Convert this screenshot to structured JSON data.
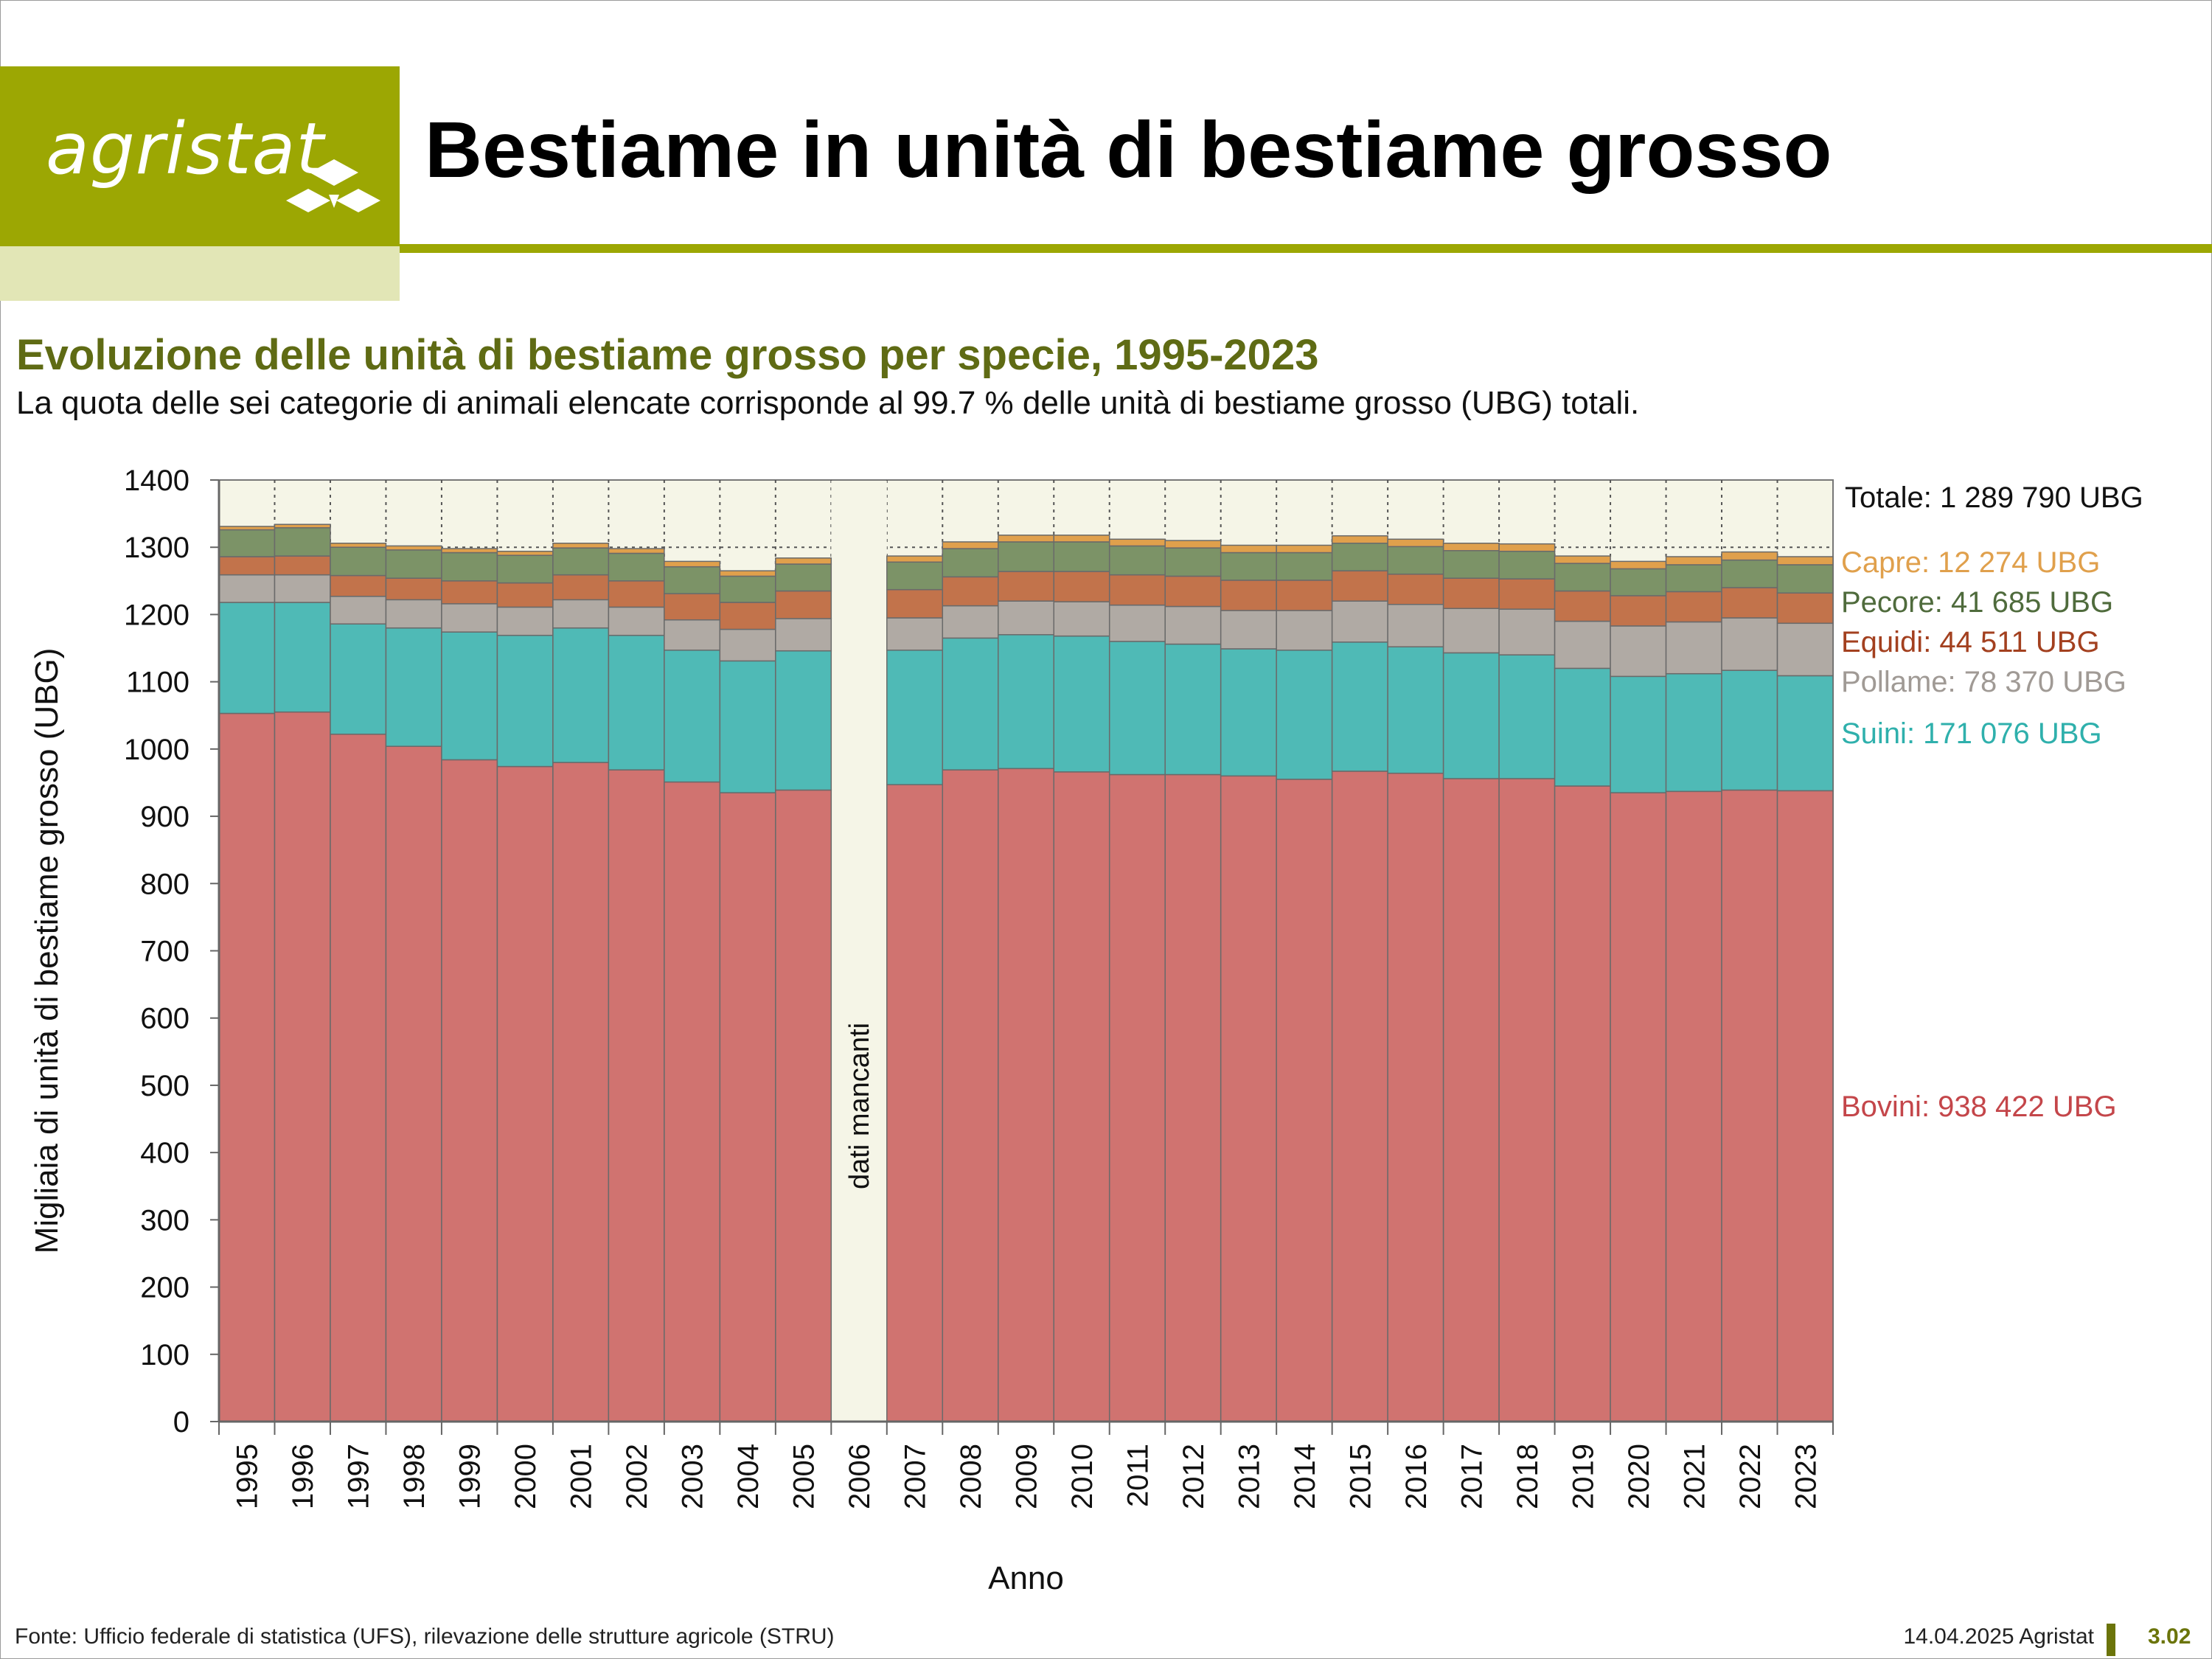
{
  "header": {
    "logo_text": "agristat",
    "title": "Bestiame in unità di bestiame grosso"
  },
  "subtitle": "Evoluzione delle unità di bestiame grosso per specie, 1995-2023",
  "note": "La quota delle sei categorie di animali elencate corrisponde al 99.7 % delle unità di bestiame grosso (UBG) totali.",
  "footer": {
    "source": "Fonte: Ufficio federale di statistica (UFS), rilevazione delle strutture agricole (STRU)",
    "date": "14.04.2025 Agristat",
    "page_number": "3.02"
  },
  "chart_data": {
    "type": "bar",
    "stacked": true,
    "title": "",
    "xlabel": "Anno",
    "ylabel": "Migliaia di unità di bestiame grosso (UBG)",
    "ylim": [
      0,
      1400
    ],
    "yticks": [
      0,
      100,
      200,
      300,
      400,
      500,
      600,
      700,
      800,
      900,
      1000,
      1100,
      1200,
      1300,
      1400
    ],
    "grid": "vertical dotted",
    "categories": [
      "1995",
      "1996",
      "1997",
      "1998",
      "1999",
      "2000",
      "2001",
      "2002",
      "2003",
      "2004",
      "2005",
      "2006",
      "2007",
      "2008",
      "2009",
      "2010",
      "2011",
      "2012",
      "2013",
      "2014",
      "2015",
      "2016",
      "2017",
      "2018",
      "2019",
      "2020",
      "2021",
      "2022",
      "2023"
    ],
    "gap_annotation": "dati mancanti",
    "total_label": "Totale: 1 289 790 UBG",
    "series": [
      {
        "name": "Bovini",
        "label": "Bovini: 938 422 UBG",
        "color": "#d07370",
        "values": [
          1053,
          1055,
          1022,
          1004,
          984,
          974,
          980,
          969,
          951,
          935,
          939,
          null,
          947,
          969,
          971,
          966,
          962,
          962,
          960,
          955,
          967,
          964,
          956,
          956,
          945,
          935,
          937,
          939,
          938
        ]
      },
      {
        "name": "Suini",
        "label": "Suini: 171 076 UBG",
        "color": "#4fbab6",
        "values": [
          165,
          163,
          164,
          176,
          190,
          195,
          200,
          200,
          196,
          196,
          207,
          null,
          200,
          196,
          199,
          202,
          198,
          194,
          189,
          192,
          192,
          188,
          187,
          184,
          175,
          173,
          175,
          178,
          171
        ]
      },
      {
        "name": "Pollame",
        "label": "Pollame: 78 370 UBG",
        "color": "#b0aaa4",
        "values": [
          41,
          41,
          41,
          42,
          42,
          42,
          42,
          42,
          45,
          47,
          48,
          null,
          48,
          48,
          50,
          51,
          54,
          56,
          57,
          59,
          61,
          63,
          66,
          68,
          70,
          75,
          77,
          78,
          78
        ]
      },
      {
        "name": "Equidi",
        "label": "Equidi: 44 511 UBG",
        "color": "#c2734b",
        "values": [
          27,
          28,
          31,
          32,
          34,
          36,
          37,
          39,
          39,
          40,
          41,
          null,
          42,
          43,
          44,
          45,
          45,
          45,
          45,
          45,
          45,
          45,
          45,
          45,
          45,
          45,
          45,
          45,
          45
        ]
      },
      {
        "name": "Pecore",
        "label": "Pecore: 41 685 UBG",
        "color": "#7c9367",
        "values": [
          40,
          42,
          42,
          42,
          42,
          41,
          40,
          41,
          40,
          39,
          40,
          null,
          41,
          42,
          44,
          44,
          43,
          42,
          41,
          41,
          41,
          41,
          41,
          41,
          41,
          40,
          40,
          41,
          42
        ]
      },
      {
        "name": "Capre",
        "label": "Capre: 12 274 UBG",
        "color": "#e0a04c",
        "values": [
          5,
          5,
          6,
          6,
          6,
          6,
          7,
          7,
          8,
          8,
          9,
          null,
          9,
          10,
          10,
          10,
          10,
          11,
          11,
          11,
          11,
          11,
          11,
          11,
          11,
          11,
          12,
          12,
          12
        ]
      }
    ],
    "legend_placement": "right, aligned to 2023 bar"
  }
}
